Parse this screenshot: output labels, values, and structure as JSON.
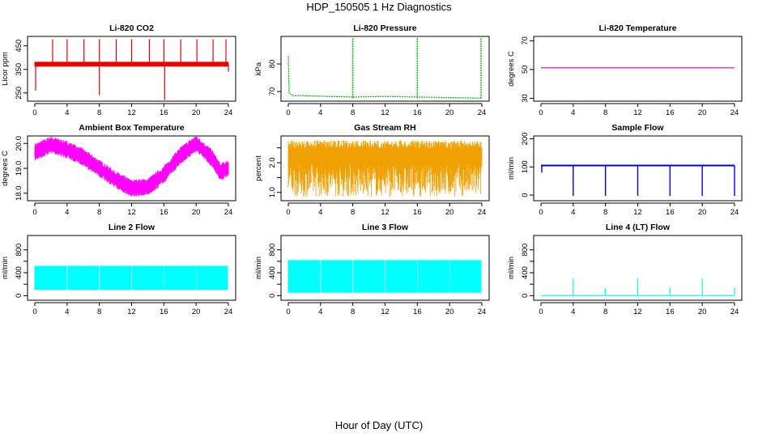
{
  "figure": {
    "title": "HDP_150505  1 Hz Diagnostics",
    "xlabel": "Hour of Day (UTC)"
  },
  "chart_data": [
    {
      "type": "line",
      "title": "Li-820 CO2",
      "ylabel": "Licor ppm",
      "xlim": [
        0,
        24
      ],
      "ylim": [
        215,
        490
      ],
      "xticks": [
        0,
        4,
        8,
        12,
        16,
        20,
        24
      ],
      "xtick_labels": [
        "0",
        "4",
        "8",
        "12",
        "16",
        "20",
        "24"
      ],
      "yticks": [
        250,
        350,
        450
      ],
      "ytick_labels": [
        "250",
        "350",
        "450"
      ],
      "color": "#ee0000",
      "series": [
        {
          "baseline": 372,
          "noise_band": [
            362,
            382
          ],
          "spikes": [
            {
              "x": 0.1,
              "y": 260
            },
            {
              "x": 2.2,
              "y": 478
            },
            {
              "x": 4.0,
              "y": 478
            },
            {
              "x": 6.1,
              "y": 478
            },
            {
              "x": 8.0,
              "y": 478
            },
            {
              "x": 8.0,
              "y": 240
            },
            {
              "x": 10.1,
              "y": 478
            },
            {
              "x": 12.0,
              "y": 478
            },
            {
              "x": 14.2,
              "y": 478
            },
            {
              "x": 16.0,
              "y": 478
            },
            {
              "x": 16.1,
              "y": 220
            },
            {
              "x": 18.1,
              "y": 478
            },
            {
              "x": 20.1,
              "y": 478
            },
            {
              "x": 22.1,
              "y": 478
            },
            {
              "x": 23.7,
              "y": 478
            },
            {
              "x": 24.0,
              "y": 340
            }
          ]
        }
      ]
    },
    {
      "type": "line",
      "title": "Li-820 Pressure",
      "ylabel": "kPa",
      "xlim": [
        0,
        24
      ],
      "ylim": [
        66.5,
        90
      ],
      "xticks": [
        0,
        4,
        8,
        12,
        16,
        20,
        24
      ],
      "xtick_labels": [
        "0",
        "4",
        "8",
        "12",
        "16",
        "20",
        "24"
      ],
      "yticks": [
        70,
        80
      ],
      "ytick_labels": [
        "70",
        "80"
      ],
      "color": "#00bb00",
      "series": [
        {
          "points": [
            [
              0,
              83
            ],
            [
              0.1,
              69.5
            ],
            [
              0.5,
              68.6
            ],
            [
              4,
              68.3
            ],
            [
              8,
              68.0
            ],
            [
              12,
              68.2
            ],
            [
              16,
              68.0
            ],
            [
              20,
              67.8
            ],
            [
              23.9,
              67.6
            ]
          ],
          "spikes": [
            {
              "x": 8.0,
              "y": 89.5
            },
            {
              "x": 16.0,
              "y": 89.5
            },
            {
              "x": 23.9,
              "y": 89.5
            }
          ]
        }
      ]
    },
    {
      "type": "line",
      "title": "Li-820 Temperature",
      "ylabel": "degrees C",
      "xlim": [
        0,
        24
      ],
      "ylim": [
        28,
        73
      ],
      "xticks": [
        0,
        4,
        8,
        12,
        16,
        20,
        24
      ],
      "xtick_labels": [
        "0",
        "4",
        "8",
        "12",
        "16",
        "20",
        "24"
      ],
      "yticks": [
        30,
        50,
        70
      ],
      "ytick_labels": [
        "30",
        "50",
        "70"
      ],
      "color": "#cc00cc",
      "series": [
        {
          "points": [
            [
              0,
              51.2
            ],
            [
              24,
              51.2
            ]
          ]
        }
      ]
    },
    {
      "type": "line",
      "title": "Ambient Box Temperature",
      "ylabel": "degrees C",
      "xlim": [
        0,
        24
      ],
      "ylim": [
        17.7,
        20.3
      ],
      "xticks": [
        0,
        4,
        8,
        12,
        16,
        20,
        24
      ],
      "xtick_labels": [
        "0",
        "4",
        "8",
        "12",
        "16",
        "20",
        "24"
      ],
      "yticks": [
        18.0,
        19.0,
        20.0
      ],
      "ytick_labels": [
        "18.0",
        "19.0",
        "20.0"
      ],
      "color": "#ff00ff",
      "series": [
        {
          "points": [
            [
              0,
              19.65
            ],
            [
              2,
              19.95
            ],
            [
              4,
              19.75
            ],
            [
              6,
              19.45
            ],
            [
              8,
              19.0
            ],
            [
              10,
              18.55
            ],
            [
              12,
              18.2
            ],
            [
              14,
              18.25
            ],
            [
              16,
              18.75
            ],
            [
              18,
              19.5
            ],
            [
              20,
              20.0
            ],
            [
              22,
              19.4
            ],
            [
              23,
              18.85
            ],
            [
              24,
              19.0
            ]
          ],
          "noise_amplitude": 0.35
        }
      ]
    },
    {
      "type": "line",
      "title": "Gas Stream RH",
      "ylabel": "percent",
      "xlim": [
        0,
        24
      ],
      "ylim": [
        0.72,
        2.9
      ],
      "xticks": [
        0,
        4,
        8,
        12,
        16,
        20,
        24
      ],
      "xtick_labels": [
        "0",
        "4",
        "8",
        "12",
        "16",
        "20",
        "24"
      ],
      "yticks": [
        1.0,
        1.5,
        2.0,
        2.5
      ],
      "ytick_labels": [
        "1.0",
        "",
        "2.0",
        ""
      ],
      "color": "#f0a000",
      "series": [
        {
          "band": [
            0.85,
            2.75
          ]
        }
      ]
    },
    {
      "type": "line",
      "title": "Sample Flow",
      "ylabel": "ml/min",
      "xlim": [
        0,
        24
      ],
      "ylim": [
        -20,
        210
      ],
      "xticks": [
        0,
        4,
        8,
        12,
        16,
        20,
        24
      ],
      "xtick_labels": [
        "0",
        "4",
        "8",
        "12",
        "16",
        "20",
        "24"
      ],
      "yticks": [
        0,
        100,
        200
      ],
      "ytick_labels": [
        "0",
        "100",
        "200"
      ],
      "color": "#0000dd",
      "series": [
        {
          "baseline": 105,
          "dips": [
            {
              "x": 0.1,
              "y": 80
            },
            {
              "x": 4.0,
              "y": -3
            },
            {
              "x": 8.0,
              "y": -3
            },
            {
              "x": 12.0,
              "y": -3
            },
            {
              "x": 16.0,
              "y": -3
            },
            {
              "x": 20.0,
              "y": -3
            },
            {
              "x": 24.0,
              "y": -3
            }
          ]
        }
      ]
    },
    {
      "type": "area",
      "title": "Line 2 Flow",
      "ylabel": "ml/min",
      "xlim": [
        0,
        24
      ],
      "ylim": [
        -80,
        1050
      ],
      "xticks": [
        0,
        4,
        8,
        12,
        16,
        20,
        24
      ],
      "xtick_labels": [
        "0",
        "4",
        "8",
        "12",
        "16",
        "20",
        "24"
      ],
      "yticks": [
        0,
        200,
        400,
        600,
        800
      ],
      "ytick_labels": [
        "0",
        "",
        "400",
        "",
        "800"
      ],
      "color": "#00ffff",
      "series": [
        {
          "band": [
            100,
            520
          ],
          "gaps": [
            4,
            8,
            12,
            16,
            20,
            24
          ]
        }
      ]
    },
    {
      "type": "area",
      "title": "Line 3 Flow",
      "ylabel": "ml/min",
      "xlim": [
        0,
        24
      ],
      "ylim": [
        -80,
        1050
      ],
      "xticks": [
        0,
        4,
        8,
        12,
        16,
        20,
        24
      ],
      "xtick_labels": [
        "0",
        "4",
        "8",
        "12",
        "16",
        "20",
        "24"
      ],
      "yticks": [
        0,
        200,
        400,
        600,
        800
      ],
      "ytick_labels": [
        "0",
        "",
        "400",
        "",
        "800"
      ],
      "color": "#00ffff",
      "series": [
        {
          "band": [
            50,
            620
          ],
          "gaps": [
            4,
            8,
            12,
            16,
            20,
            24
          ]
        }
      ]
    },
    {
      "type": "line",
      "title": "Line 4 (LT) Flow",
      "ylabel": "ml/min",
      "xlim": [
        0,
        24
      ],
      "ylim": [
        -80,
        1050
      ],
      "xticks": [
        0,
        4,
        8,
        12,
        16,
        20,
        24
      ],
      "xtick_labels": [
        "0",
        "4",
        "8",
        "12",
        "16",
        "20",
        "24"
      ],
      "yticks": [
        0,
        200,
        400,
        600,
        800
      ],
      "ytick_labels": [
        "0",
        "",
        "400",
        "",
        "800"
      ],
      "color": "#00ffff",
      "series": [
        {
          "baseline": 0,
          "spikes": [
            {
              "x": 4.0,
              "y": 300
            },
            {
              "x": 8.0,
              "y": 140
            },
            {
              "x": 12.0,
              "y": 300
            },
            {
              "x": 16.0,
              "y": 150
            },
            {
              "x": 20.0,
              "y": 300
            },
            {
              "x": 24.0,
              "y": 140
            }
          ]
        }
      ]
    }
  ]
}
